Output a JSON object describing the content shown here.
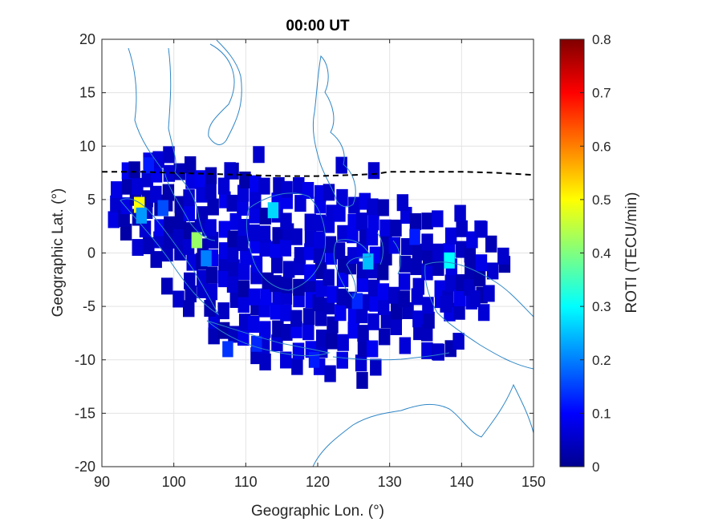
{
  "chart_data": {
    "type": "heatmap",
    "title": "00:00 UT",
    "xlabel": "Geographic Lon. (°)",
    "ylabel": "Geographic Lat. (°)",
    "xlim": [
      90,
      150
    ],
    "ylim": [
      -20,
      20
    ],
    "xticks": [
      90,
      100,
      110,
      120,
      130,
      140,
      150
    ],
    "yticks": [
      20,
      15,
      10,
      5,
      0,
      -5,
      -10,
      -15,
      -20
    ],
    "grid": true,
    "colorbar": {
      "label": "ROTI (TECU/min)",
      "range": [
        0,
        0.8
      ],
      "ticks": [
        0,
        0.1,
        0.2,
        0.3,
        0.4,
        0.5,
        0.6,
        0.7,
        0.8
      ],
      "colormap": "jet"
    },
    "cell_size_deg": 1.5,
    "background_value": 0.06,
    "highlight_cells": [
      {
        "lon": 95.2,
        "lat": 4.5,
        "value": 0.5
      },
      {
        "lon": 95.5,
        "lat": 3.5,
        "value": 0.22
      },
      {
        "lon": 103.2,
        "lat": 1.2,
        "value": 0.42
      },
      {
        "lon": 113.8,
        "lat": 4.0,
        "value": 0.27
      },
      {
        "lon": 104.5,
        "lat": -0.5,
        "value": 0.2
      },
      {
        "lon": 127.0,
        "lat": -0.8,
        "value": 0.25
      },
      {
        "lon": 138.3,
        "lat": -0.7,
        "value": 0.3
      },
      {
        "lon": 96.5,
        "lat": 8.2,
        "value": 0.12
      },
      {
        "lon": 98.5,
        "lat": 4.2,
        "value": 0.16
      },
      {
        "lon": 107.5,
        "lat": -9.0,
        "value": 0.14
      },
      {
        "lon": 111.5,
        "lat": -8.5,
        "value": 0.13
      },
      {
        "lon": 125.5,
        "lat": -4.5,
        "value": 0.13
      },
      {
        "lon": 133.5,
        "lat": 1.5,
        "value": 0.12
      },
      {
        "lon": 119.5,
        "lat": -10.0,
        "value": 0.12
      }
    ],
    "dip_equator": {
      "lon": [
        90,
        95,
        100,
        105,
        110,
        115,
        120,
        125,
        128,
        130,
        135,
        140,
        145,
        150
      ],
      "lat": [
        7.6,
        7.6,
        7.5,
        7.4,
        7.3,
        7.2,
        7.2,
        7.3,
        7.4,
        7.6,
        7.6,
        7.6,
        7.5,
        7.3
      ]
    }
  }
}
